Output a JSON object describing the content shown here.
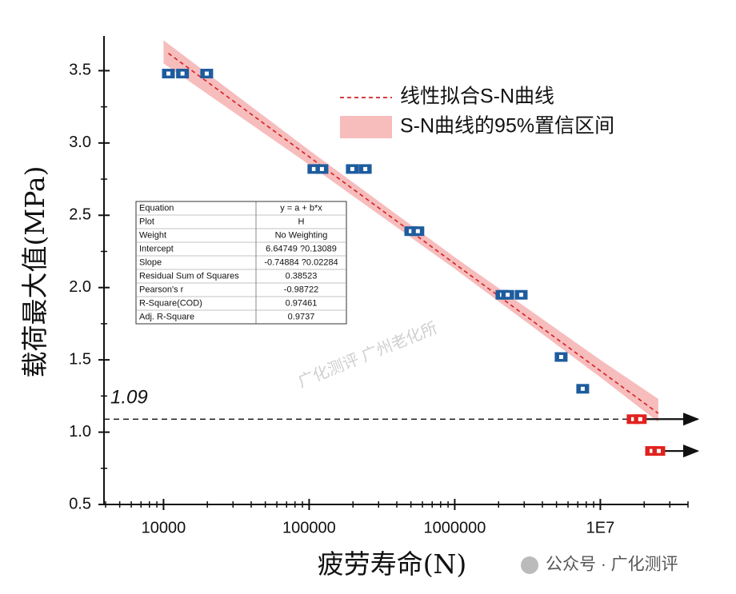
{
  "chart_data": {
    "type": "scatter",
    "xlabel": "疲劳寿命(N)",
    "ylabel": "载荷最大值(MPa)",
    "xscale": "log",
    "xlim": [
      3900,
      40000000
    ],
    "ylim": [
      0.5,
      3.74
    ],
    "xticks": [
      10000,
      100000,
      1000000,
      {
        "value": 10000000,
        "label": "1E7"
      }
    ],
    "yticks": [
      0.5,
      {
        "value": 1,
        "label": "1.0"
      },
      1.5,
      {
        "value": 2,
        "label": "2.0"
      },
      2.5,
      {
        "value": 3,
        "label": "3.0"
      },
      3.5
    ],
    "series": [
      {
        "color": "#1d5c9e",
        "x": [
          10800,
          13500,
          19800,
          107800,
          122400,
          198000,
          243000,
          499000,
          558000,
          2110000,
          2310000,
          2860000,
          5380000,
          7570000
        ],
        "values": [
          3.48,
          3.48,
          3.48,
          2.82,
          2.82,
          2.82,
          2.82,
          2.39,
          2.39,
          1.95,
          1.95,
          1.95,
          1.52,
          1.3
        ]
      },
      {
        "color": "#e0221e",
        "runout": true,
        "x": [
          16800000,
          18800000,
          22500000,
          25200000
        ],
        "values": [
          1.09,
          1.09,
          0.87,
          0.87
        ]
      }
    ],
    "fit": {
      "name": "线性拟合S-N曲线",
      "color": "#d42020",
      "x": [
        10800,
        25000000
      ],
      "values": [
        3.62,
        1.13
      ]
    },
    "band": {
      "name": "S-N曲线的95%置信区间",
      "color": "#f4a6a6",
      "x": [
        10000,
        100000,
        1000000,
        10000000,
        25000000
      ],
      "upper": [
        3.71,
        2.95,
        2.21,
        1.5,
        1.23
      ],
      "lower": [
        3.55,
        2.85,
        2.13,
        1.38,
        1.07
      ]
    },
    "hline": 1.09,
    "stats_table": {
      "rows": [
        [
          "Equation",
          "y = a + b*x"
        ],
        [
          "Plot",
          "H"
        ],
        [
          "Weight",
          "No Weighting"
        ],
        [
          "Intercept",
          "6.64749 ?0.13089"
        ],
        [
          "Slope",
          "-0.74884 ?0.02284"
        ],
        [
          "Residual Sum of Squares",
          "0.38523"
        ],
        [
          "Pearson's r",
          "-0.98722"
        ],
        [
          "R-Square(COD)",
          "0.97461"
        ],
        [
          "Adj. R-Square",
          "0.9737"
        ]
      ]
    }
  },
  "watermark": "广化测评 广州老化所",
  "footer_watermark": "公众号 · 广化测评"
}
